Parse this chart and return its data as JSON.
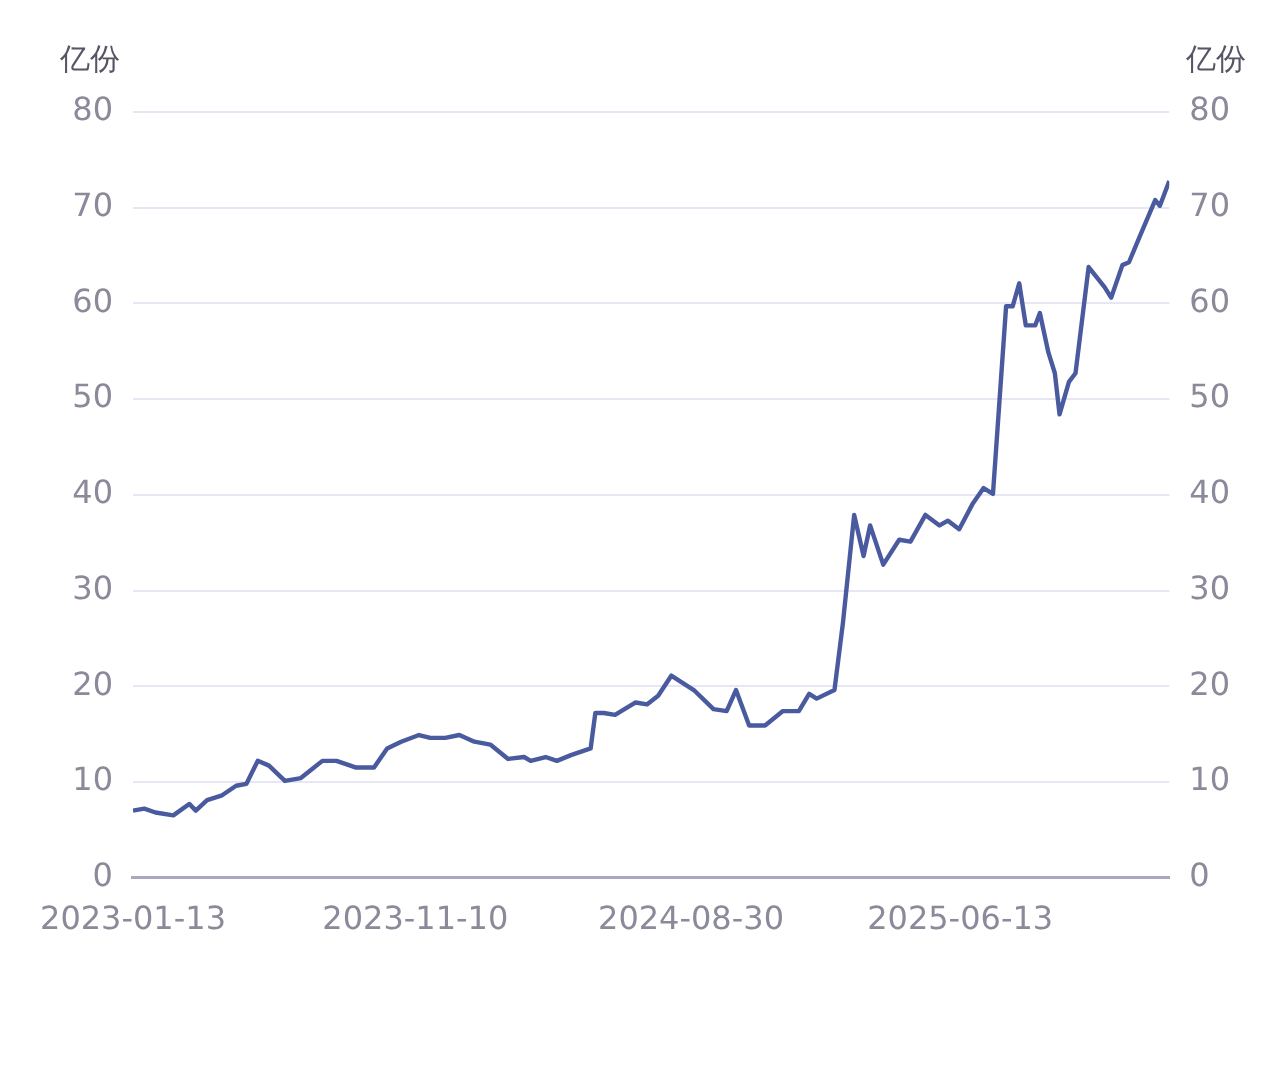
{
  "chart_data": {
    "type": "line",
    "ylabel": "亿份",
    "y2label": "亿份",
    "x": [
      "2023-01-13",
      "2023-01-25",
      "2023-02-06",
      "2023-02-25",
      "2023-03-14",
      "2023-03-21",
      "2023-04-02",
      "2023-04-18",
      "2023-05-03",
      "2023-05-14",
      "2023-05-26",
      "2023-06-07",
      "2023-06-24",
      "2023-07-11",
      "2023-08-03",
      "2023-08-18",
      "2023-09-08",
      "2023-09-27",
      "2023-10-11",
      "2023-10-26",
      "2023-11-14",
      "2023-11-26",
      "2023-12-12",
      "2023-12-27",
      "2024-01-12",
      "2024-01-29",
      "2024-02-17",
      "2024-03-05",
      "2024-03-12",
      "2024-03-28",
      "2024-04-09",
      "2024-04-24",
      "2024-05-15",
      "2024-05-20",
      "2024-05-29",
      "2024-06-10",
      "2024-07-02",
      "2024-07-14",
      "2024-07-26",
      "2024-08-09",
      "2024-09-02",
      "2024-09-23",
      "2024-10-07",
      "2024-10-17",
      "2024-10-31",
      "2024-11-17",
      "2024-12-06",
      "2024-12-23",
      "2025-01-03",
      "2025-01-11",
      "2025-01-30",
      "2025-02-08",
      "2025-02-20",
      "2025-03-02",
      "2025-03-09",
      "2025-03-23",
      "2025-04-09",
      "2025-04-21",
      "2025-05-07",
      "2025-05-22",
      "2025-05-31",
      "2025-06-12",
      "2025-06-26",
      "2025-07-08",
      "2025-07-18",
      "2025-08-01",
      "2025-08-08",
      "2025-08-15",
      "2025-08-22",
      "2025-09-01",
      "2025-09-06",
      "2025-09-15",
      "2025-09-22",
      "2025-09-27",
      "2025-10-07",
      "2025-10-14",
      "2025-10-28",
      "2025-11-14",
      "2025-11-21",
      "2025-12-03",
      "2025-12-10",
      "2025-12-22",
      "2026-01-07",
      "2026-01-12",
      "2026-01-22"
    ],
    "series": [
      {
        "color": "#4a5a9e",
        "values": [
          7.0,
          7.2,
          6.8,
          6.5,
          7.7,
          7.0,
          8.1,
          8.6,
          9.6,
          9.8,
          12.2,
          11.7,
          10.1,
          10.4,
          12.2,
          12.2,
          11.5,
          11.5,
          13.5,
          14.2,
          14.9,
          14.6,
          14.6,
          14.9,
          14.2,
          13.9,
          12.4,
          12.6,
          12.2,
          12.6,
          12.2,
          12.8,
          13.5,
          17.2,
          17.2,
          17.0,
          18.3,
          18.1,
          19.0,
          21.1,
          19.6,
          17.6,
          17.4,
          19.6,
          15.9,
          15.9,
          17.4,
          17.4,
          19.2,
          18.7,
          19.6,
          26.6,
          37.9,
          33.6,
          36.8,
          32.7,
          35.3,
          35.1,
          37.9,
          36.8,
          37.3,
          36.4,
          39.0,
          40.7,
          40.1,
          59.7,
          59.7,
          62.1,
          57.7,
          57.7,
          59.0,
          54.9,
          52.7,
          48.4,
          51.8,
          52.7,
          63.8,
          61.7,
          60.6,
          64.0,
          64.3,
          67.1,
          70.8,
          70.2,
          72.8
        ]
      }
    ],
    "xlim": [
      "2023-01-13",
      "2026-01-22"
    ],
    "xticks": [
      "2023-01-13",
      "2023-11-10",
      "2024-08-30",
      "2025-06-13"
    ],
    "ylim": [
      0,
      80
    ],
    "yticks": [
      0,
      10,
      20,
      30,
      40,
      50,
      60,
      70,
      80
    ],
    "y2lim": [
      0,
      80
    ],
    "y2ticks": [
      0,
      10,
      20,
      30,
      40,
      50,
      60,
      70,
      80
    ],
    "grid": "y",
    "legend": false,
    "marker": "none",
    "line_style": "solid"
  }
}
